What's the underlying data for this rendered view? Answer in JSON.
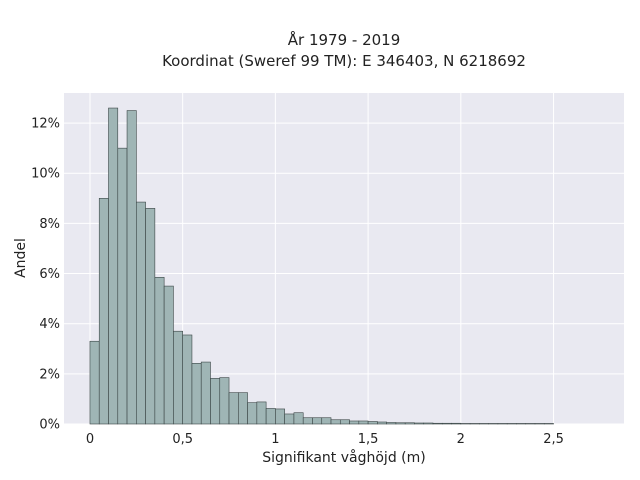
{
  "chart_data": {
    "type": "bar",
    "title_line1": "År 1979 - 2019",
    "title_line2": "Koordinat (Sweref 99 TM): E 346403, N 6218692",
    "xlabel": "Signifikant våghöjd (m)",
    "ylabel": "Andel",
    "xlim": [
      -0.14,
      2.88
    ],
    "ylim": [
      0,
      13.2
    ],
    "x_ticks": [
      {
        "value": 0,
        "label": "0"
      },
      {
        "value": 0.5,
        "label": "0,5"
      },
      {
        "value": 1,
        "label": "1"
      },
      {
        "value": 1.5,
        "label": "1,5"
      },
      {
        "value": 2,
        "label": "2"
      },
      {
        "value": 2.5,
        "label": "2,5"
      }
    ],
    "y_ticks": [
      {
        "value": 0,
        "label": "0%"
      },
      {
        "value": 2,
        "label": "2%"
      },
      {
        "value": 4,
        "label": "4%"
      },
      {
        "value": 6,
        "label": "6%"
      },
      {
        "value": 8,
        "label": "8%"
      },
      {
        "value": 10,
        "label": "10%"
      },
      {
        "value": 12,
        "label": "12%"
      }
    ],
    "bin_width": 0.05,
    "bin_start": 0,
    "values": [
      3.3,
      9.0,
      12.6,
      11.0,
      12.5,
      8.85,
      8.6,
      5.85,
      5.5,
      3.7,
      3.55,
      2.42,
      2.47,
      1.82,
      1.85,
      1.25,
      1.25,
      0.85,
      0.88,
      0.62,
      0.6,
      0.4,
      0.45,
      0.25,
      0.25,
      0.25,
      0.17,
      0.17,
      0.12,
      0.12,
      0.1,
      0.08,
      0.06,
      0.05,
      0.05,
      0.04,
      0.04,
      0.03,
      0.03,
      0.03,
      0.02,
      0.02,
      0.02,
      0.02,
      0.02,
      0.02,
      0.02,
      0.02,
      0.02,
      0.02
    ],
    "grid": true,
    "colors": {
      "background": "#e9e9f1",
      "bar_fill": "#9fb5b5",
      "bar_edge": "#3a4545",
      "grid": "#ffffff",
      "text": "#222222"
    }
  }
}
